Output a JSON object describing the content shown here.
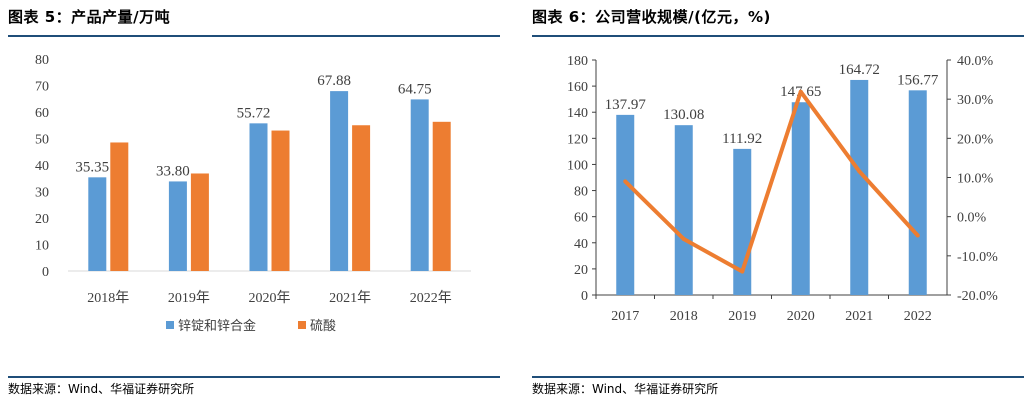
{
  "left": {
    "title": "图表 5：产品产量/万吨",
    "source": "数据来源：Wind、华福证券研究所",
    "chart_data": {
      "type": "bar",
      "categories": [
        "2018年",
        "2019年",
        "2020年",
        "2021年",
        "2022年"
      ],
      "series": [
        {
          "name": "锌锭和锌合金",
          "values": [
            35.35,
            33.8,
            55.72,
            67.88,
            64.75
          ],
          "color": "#5b9bd5",
          "labels": [
            "35.35",
            "33.80",
            "55.72",
            "67.88",
            "64.75"
          ]
        },
        {
          "name": "硫酸",
          "values": [
            48.5,
            36.8,
            53.0,
            55.0,
            56.3
          ],
          "color": "#ed7d31"
        }
      ],
      "ylim": [
        0,
        80
      ],
      "yticks": [
        "0",
        "10",
        "20",
        "30",
        "40",
        "50",
        "60",
        "70",
        "80"
      ],
      "legend_position": "bottom",
      "grid": false
    }
  },
  "right": {
    "title": "图表 6：公司营收规模/(亿元，%)",
    "source": "数据来源：Wind、华福证券研究所",
    "chart_data": {
      "type": "bar",
      "categories": [
        "2017",
        "2018",
        "2019",
        "2020",
        "2021",
        "2022"
      ],
      "series": [
        {
          "values": [
            137.97,
            130.08,
            111.92,
            147.65,
            164.72,
            156.77
          ],
          "color": "#5b9bd5",
          "labels": [
            "137.97",
            "130.08",
            "111.92",
            "147.65",
            "164.72",
            "156.77"
          ],
          "axis": "left"
        },
        {
          "type": "line",
          "values": [
            9.0,
            -5.7,
            -14.0,
            31.9,
            11.6,
            -4.8
          ],
          "color": "#ed7d31",
          "axis": "right"
        }
      ],
      "ylim": [
        0,
        180
      ],
      "yticks": [
        "0",
        "20",
        "40",
        "60",
        "80",
        "100",
        "120",
        "140",
        "160",
        "180"
      ],
      "y2lim": [
        -20,
        40
      ],
      "y2ticks": [
        "-20.0%",
        "-10.0%",
        "0.0%",
        "10.0%",
        "20.0%",
        "30.0%",
        "40.0%"
      ],
      "legend_position": "none",
      "grid": false
    }
  }
}
